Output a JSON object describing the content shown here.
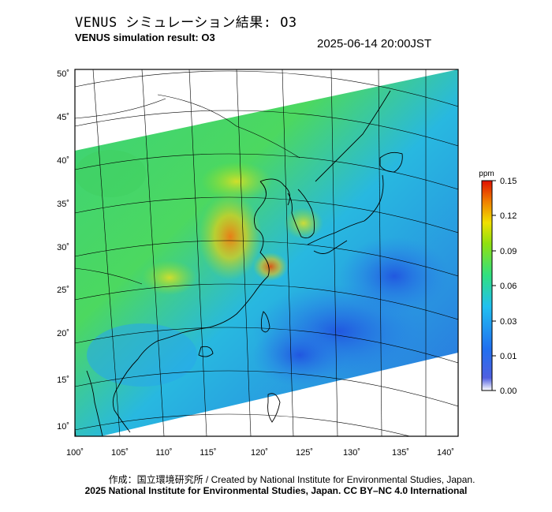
{
  "header": {
    "title_jp": "VENUS シミュレーション結果: O3",
    "title_en": "VENUS simulation result: O3",
    "timestamp": "2025-06-14 20:00JST"
  },
  "map": {
    "lon_ticks": [
      "100˚",
      "105˚",
      "110˚",
      "115˚",
      "120˚",
      "125˚",
      "130˚",
      "135˚",
      "140˚"
    ],
    "lat_ticks": [
      "50˚",
      "45˚",
      "40˚",
      "35˚",
      "30˚",
      "25˚",
      "20˚",
      "15˚",
      "10˚"
    ]
  },
  "colorbar": {
    "unit": "ppm",
    "tick_labels": [
      "0.15",
      "0.12",
      "0.09",
      "0.06",
      "0.03",
      "0.01",
      "0.00"
    ],
    "colors": [
      "#ffffff",
      "#2040e0",
      "#20a8f0",
      "#30e080",
      "#70e020",
      "#f0e000",
      "#f09000",
      "#e02000"
    ]
  },
  "footer": {
    "credit_line1": "作成：国立環境研究所 / Created by National Institute for Environmental Studies, Japan.",
    "credit_line2": "2025 National Institute for Environmental Studies, Japan. CC BY–NC 4.0 International"
  }
}
